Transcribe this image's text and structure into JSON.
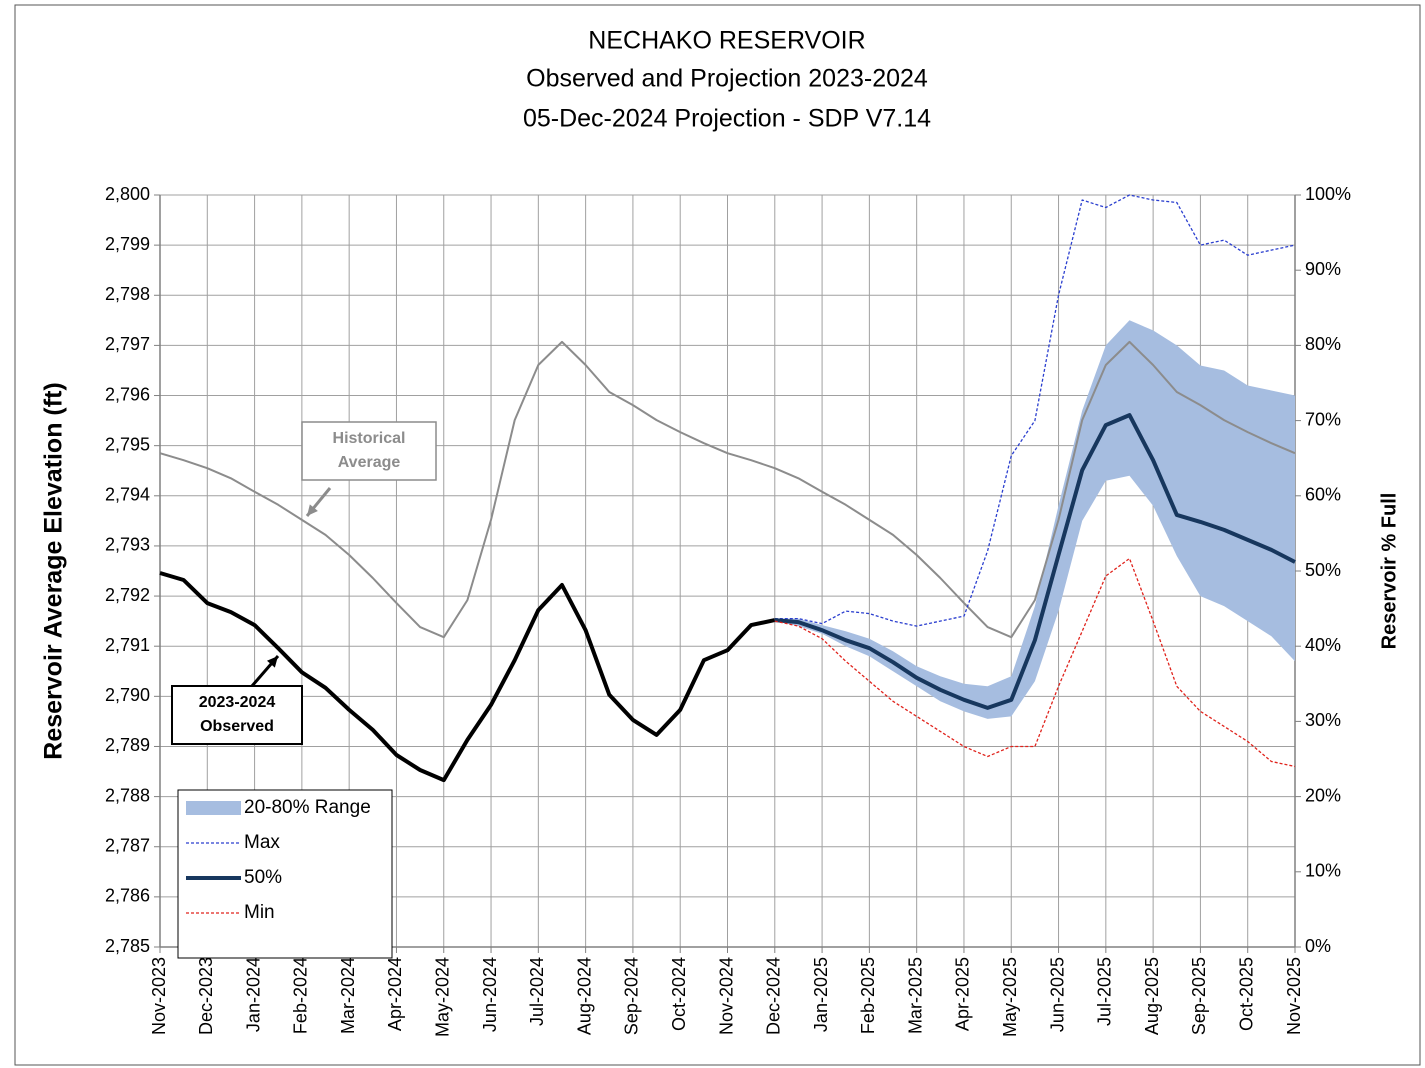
{
  "chart_data": {
    "type": "line",
    "title": [
      "NECHAKO RESERVOIR",
      "Observed and Projection 2023-2024",
      "05-Dec-2024 Projection - SDP V7.14"
    ],
    "y_label": "Reservoir Average Elevation (ft)",
    "y2_label": "Reservoir % Full",
    "categories": [
      "Nov-2023",
      null,
      "Dec-2023",
      null,
      "Jan-2024",
      null,
      "Feb-2024",
      null,
      "Mar-2024",
      null,
      "Apr-2024",
      null,
      "May-2024",
      null,
      "Jun-2024",
      null,
      "Jul-2024",
      null,
      "Aug-2024",
      null,
      "Sep-2024",
      null,
      "Oct-2024",
      null,
      "Nov-2024",
      null,
      "Dec-2024",
      null,
      "Jan-2025",
      null,
      "Feb-2025",
      null,
      "Mar-2025",
      null,
      "Apr-2025",
      null,
      "May-2025",
      null,
      "Jun-2025",
      null,
      "Jul-2025",
      null,
      "Aug-2025",
      null,
      "Sep-2025",
      null,
      "Oct-2025",
      null,
      "Nov-2025"
    ],
    "ylim": [
      2785,
      2800
    ],
    "yticks": [
      {
        "value": 2785,
        "label": "2,785"
      },
      {
        "value": 2786,
        "label": "2,786"
      },
      {
        "value": 2787,
        "label": "2,787"
      },
      {
        "value": 2788,
        "label": "2,788"
      },
      {
        "value": 2789,
        "label": "2,789"
      },
      {
        "value": 2790,
        "label": "2,790"
      },
      {
        "value": 2791,
        "label": "2,791"
      },
      {
        "value": 2792,
        "label": "2,792"
      },
      {
        "value": 2793,
        "label": "2,793"
      },
      {
        "value": 2794,
        "label": "2,794"
      },
      {
        "value": 2795,
        "label": "2,795"
      },
      {
        "value": 2796,
        "label": "2,796"
      },
      {
        "value": 2797,
        "label": "2,797"
      },
      {
        "value": 2798,
        "label": "2,798"
      },
      {
        "value": 2799,
        "label": "2,799"
      },
      {
        "value": 2800,
        "label": "2,800"
      }
    ],
    "y2lim": [
      0,
      100
    ],
    "y2ticks": [
      {
        "value": 0,
        "label": "0%"
      },
      {
        "value": 10,
        "label": "10%"
      },
      {
        "value": 20,
        "label": "20%"
      },
      {
        "value": 30,
        "label": "30%"
      },
      {
        "value": 40,
        "label": "40%"
      },
      {
        "value": 50,
        "label": "50%"
      },
      {
        "value": 60,
        "label": "60%"
      },
      {
        "value": 70,
        "label": "70%"
      },
      {
        "value": 80,
        "label": "80%"
      },
      {
        "value": 90,
        "label": "90%"
      },
      {
        "value": 100,
        "label": "100%"
      }
    ],
    "grid": true,
    "legend": "bottom-left",
    "series": [
      {
        "name": "20-80% Range",
        "kind": "band",
        "color": "#a6bde0",
        "low": [
          null,
          null,
          null,
          null,
          null,
          null,
          null,
          null,
          null,
          null,
          null,
          null,
          null,
          null,
          null,
          null,
          null,
          null,
          null,
          null,
          null,
          null,
          null,
          null,
          null,
          null,
          2791.5,
          2791.4,
          2791.25,
          2791.0,
          2790.8,
          2790.5,
          2790.2,
          2789.9,
          2789.7,
          2789.55,
          2789.6,
          2790.3,
          2791.7,
          2793.5,
          2794.3,
          2794.4,
          2793.8,
          2792.8,
          2792.0,
          2791.8,
          2791.5,
          2791.2,
          2790.7
        ],
        "high": [
          null,
          null,
          null,
          null,
          null,
          null,
          null,
          null,
          null,
          null,
          null,
          null,
          null,
          null,
          null,
          null,
          null,
          null,
          null,
          null,
          null,
          null,
          null,
          null,
          null,
          null,
          2791.55,
          2791.55,
          2791.42,
          2791.3,
          2791.15,
          2790.9,
          2790.6,
          2790.4,
          2790.25,
          2790.2,
          2790.4,
          2791.8,
          2793.8,
          2795.7,
          2797.0,
          2797.5,
          2797.3,
          2797.0,
          2796.6,
          2796.5,
          2796.2,
          2796.1,
          2796.0
        ]
      },
      {
        "kind": "line",
        "style": "solid",
        "color": "#8c8c8c",
        "values": [
          2794.85,
          2794.71,
          2794.55,
          2794.35,
          2794.08,
          2793.82,
          2793.52,
          2793.22,
          2792.82,
          2792.36,
          2791.86,
          2791.38,
          2791.18,
          2791.92,
          2793.52,
          2795.51,
          2796.61,
          2797.07,
          2796.61,
          2796.07,
          2795.81,
          2795.51,
          2795.27,
          2795.05,
          2794.85,
          2794.71,
          2794.55,
          2794.35,
          2794.08,
          2793.82,
          2793.52,
          2793.22,
          2792.82,
          2792.36,
          2791.86,
          2791.38,
          2791.18,
          2791.92,
          2793.52,
          2795.51,
          2796.61,
          2797.07,
          2796.61,
          2796.07,
          2795.81,
          2795.51,
          2795.27,
          2795.05,
          2794.85
        ]
      },
      {
        "kind": "line",
        "style": "thick",
        "color": "#000000",
        "values": [
          2792.46,
          2792.32,
          2791.86,
          2791.68,
          2791.42,
          2790.96,
          2790.48,
          2790.17,
          2789.73,
          2789.33,
          2788.83,
          2788.53,
          2788.33,
          2789.13,
          2789.83,
          2790.72,
          2791.72,
          2792.22,
          2791.32,
          2790.03,
          2789.53,
          2789.23,
          2789.73,
          2790.72,
          2790.92,
          2791.42,
          2791.52,
          null,
          null,
          null,
          null,
          null,
          null,
          null,
          null,
          null,
          null,
          null,
          null,
          null,
          null,
          null,
          null,
          null,
          null,
          null,
          null,
          null,
          null
        ]
      },
      {
        "name": "Max",
        "kind": "line",
        "style": "dashed",
        "color": "#2b3fcf",
        "values": [
          null,
          null,
          null,
          null,
          null,
          null,
          null,
          null,
          null,
          null,
          null,
          null,
          null,
          null,
          null,
          null,
          null,
          null,
          null,
          null,
          null,
          null,
          null,
          null,
          null,
          null,
          2791.55,
          2791.55,
          2791.45,
          2791.7,
          2791.65,
          2791.5,
          2791.4,
          2791.5,
          2791.6,
          2792.9,
          2794.8,
          2795.5,
          2798.0,
          2799.9,
          2799.75,
          2800.0,
          2799.9,
          2799.85,
          2799.0,
          2799.1,
          2798.8,
          2798.9,
          2799.0
        ]
      },
      {
        "name": "50%",
        "kind": "line",
        "style": "thick",
        "color": "#17375e",
        "values": [
          null,
          null,
          null,
          null,
          null,
          null,
          null,
          null,
          null,
          null,
          null,
          null,
          null,
          null,
          null,
          null,
          null,
          null,
          null,
          null,
          null,
          null,
          null,
          null,
          null,
          null,
          2791.52,
          2791.48,
          2791.32,
          2791.12,
          2790.96,
          2790.68,
          2790.37,
          2790.13,
          2789.93,
          2789.77,
          2789.93,
          2791.12,
          2792.82,
          2794.51,
          2795.41,
          2795.61,
          2794.71,
          2793.62,
          2793.48,
          2793.32,
          2793.12,
          2792.92,
          2792.68
        ]
      },
      {
        "name": "Min",
        "kind": "line",
        "style": "dashed",
        "color": "#e0231c",
        "values": [
          null,
          null,
          null,
          null,
          null,
          null,
          null,
          null,
          null,
          null,
          null,
          null,
          null,
          null,
          null,
          null,
          null,
          null,
          null,
          null,
          null,
          null,
          null,
          null,
          null,
          null,
          2791.5,
          2791.4,
          2791.15,
          2790.7,
          2790.3,
          2789.9,
          2789.6,
          2789.3,
          2789.0,
          2788.8,
          2789.0,
          2789.0,
          2790.2,
          2791.3,
          2792.4,
          2792.75,
          2791.5,
          2790.2,
          2789.7,
          2789.4,
          2789.1,
          2788.7,
          2788.6
        ]
      }
    ],
    "annotations": [
      {
        "text": [
          "Historical",
          "Average"
        ],
        "color": "#8c8c8c"
      },
      {
        "text": [
          "2023-2024",
          "Observed"
        ],
        "color": "#000000"
      }
    ]
  }
}
